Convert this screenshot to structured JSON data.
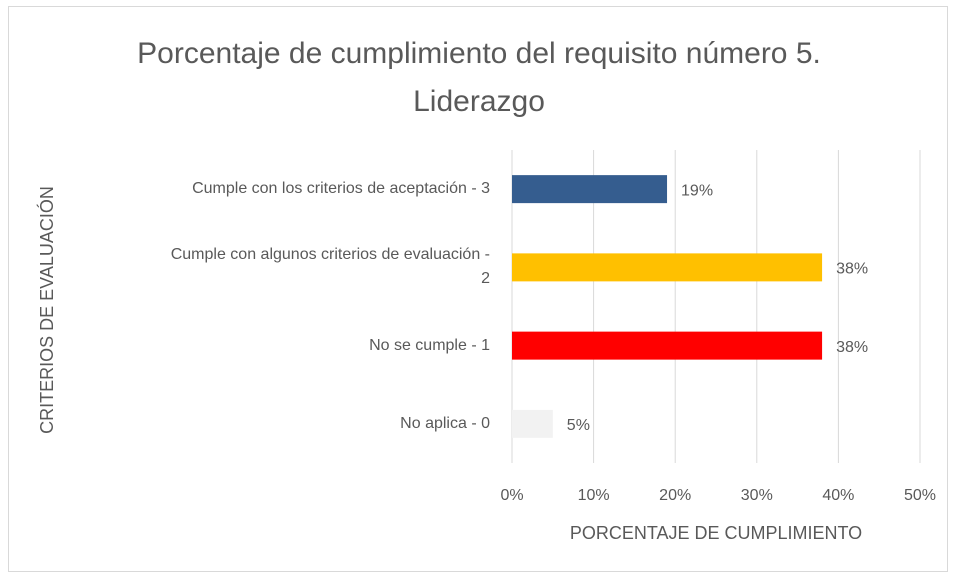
{
  "chart_data": {
    "type": "bar",
    "orientation": "horizontal",
    "title": "Porcentaje de cumplimiento del requisito número 5. Liderazgo",
    "x_label": "PORCENTAJE DE CUMPLIMIENTO",
    "y_label": "CRITERIOS DE EVALUACIÓN",
    "categories": [
      "Cumple con los criterios de aceptación - 3",
      "Cumple con algunos criterios de evaluación - 2",
      "No se cumple - 1",
      "No aplica - 0"
    ],
    "values": [
      19,
      38,
      38,
      5
    ],
    "value_labels": [
      "19%",
      "38%",
      "38%",
      "5%"
    ],
    "colors": [
      "#355d8f",
      "#ffc000",
      "#ff0000",
      "#f2f2f2"
    ],
    "xlim": [
      0,
      50
    ],
    "xticks": [
      {
        "value": 0,
        "label": "0%"
      },
      {
        "value": 10,
        "label": "10%"
      },
      {
        "value": 20,
        "label": "20%"
      },
      {
        "value": 30,
        "label": "30%"
      },
      {
        "value": 40,
        "label": "40%"
      },
      {
        "value": 50,
        "label": "50%"
      }
    ],
    "grid": true
  }
}
